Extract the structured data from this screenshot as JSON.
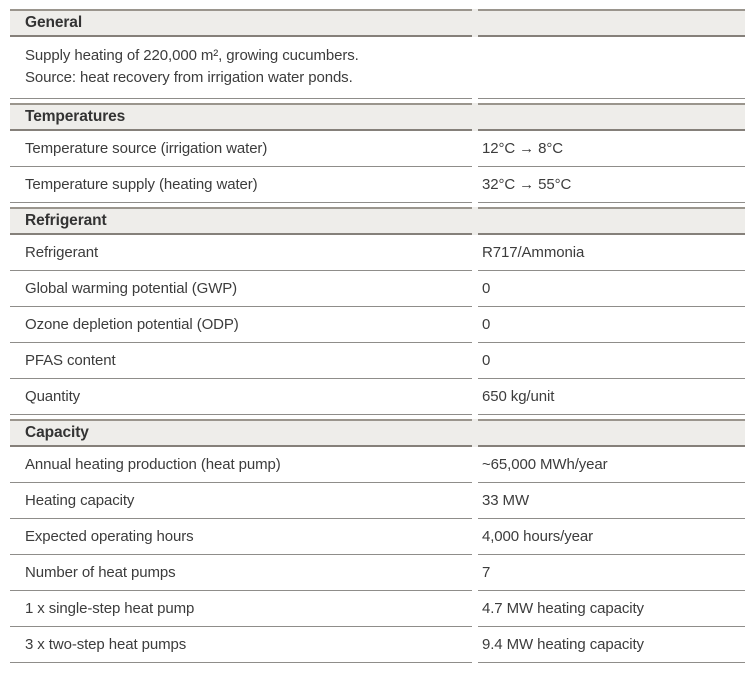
{
  "document": {
    "kind": "heat-pump-project-specification-table",
    "colors": {
      "background": "#ffffff",
      "header_background": "#eeedea",
      "header_top_border": "#9a958d",
      "header_bottom_border": "#85807a",
      "row_border": "#8f8d8a",
      "text": "#3c3c3c"
    }
  },
  "table": {
    "sections": [
      {
        "title": "General",
        "paragraph": [
          "Supply heating of 220,000 m², growing cucumbers.",
          "Source: heat recovery from irrigation water ponds."
        ],
        "rows": []
      },
      {
        "title": "Temperatures",
        "rows": [
          {
            "label": "Temperature source (irrigation water)",
            "value": "12°C → 8°C"
          },
          {
            "label": "Temperature supply (heating water)",
            "value": "32°C → 55°C"
          }
        ]
      },
      {
        "title": "Refrigerant",
        "rows": [
          {
            "label": "Refrigerant",
            "value": "R717/Ammonia"
          },
          {
            "label": "Global warming potential (GWP)",
            "value": "0"
          },
          {
            "label": "Ozone depletion potential (ODP)",
            "value": "0"
          },
          {
            "label": "PFAS content",
            "value": "0"
          },
          {
            "label": "Quantity",
            "value": "650 kg/unit"
          }
        ]
      },
      {
        "title": "Capacity",
        "rows": [
          {
            "label": "Annual heating production (heat pump)",
            "value": "~65,000 MWh/year"
          },
          {
            "label": "Heating capacity",
            "value": "33 MW"
          },
          {
            "label": "Expected operating hours",
            "value": "4,000 hours/year"
          },
          {
            "label": "Number of heat pumps",
            "value": "7"
          },
          {
            "label": "1 x single-step heat pump",
            "value": "4.7 MW heating capacity"
          },
          {
            "label": "3 x two-step heat pumps",
            "value": "9.4 MW heating capacity"
          }
        ]
      }
    ]
  }
}
